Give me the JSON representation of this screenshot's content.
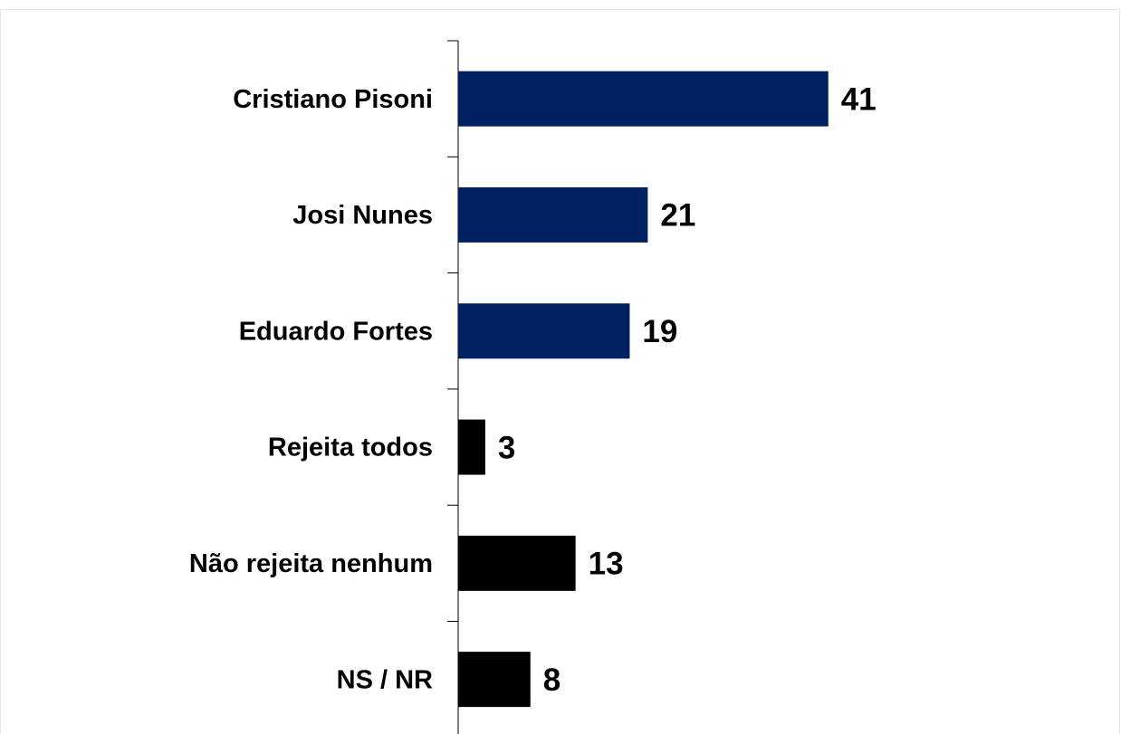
{
  "chart_data": {
    "type": "bar",
    "orientation": "horizontal",
    "categories": [
      "Cristiano Pisoni",
      "Josi Nunes",
      "Eduardo Fortes",
      "Rejeita todos",
      "Não rejeita nenhum",
      "NS / NR"
    ],
    "values": [
      41,
      21,
      19,
      3,
      13,
      8
    ],
    "colors": [
      "#002060",
      "#002060",
      "#002060",
      "#000000",
      "#000000",
      "#000000"
    ]
  }
}
